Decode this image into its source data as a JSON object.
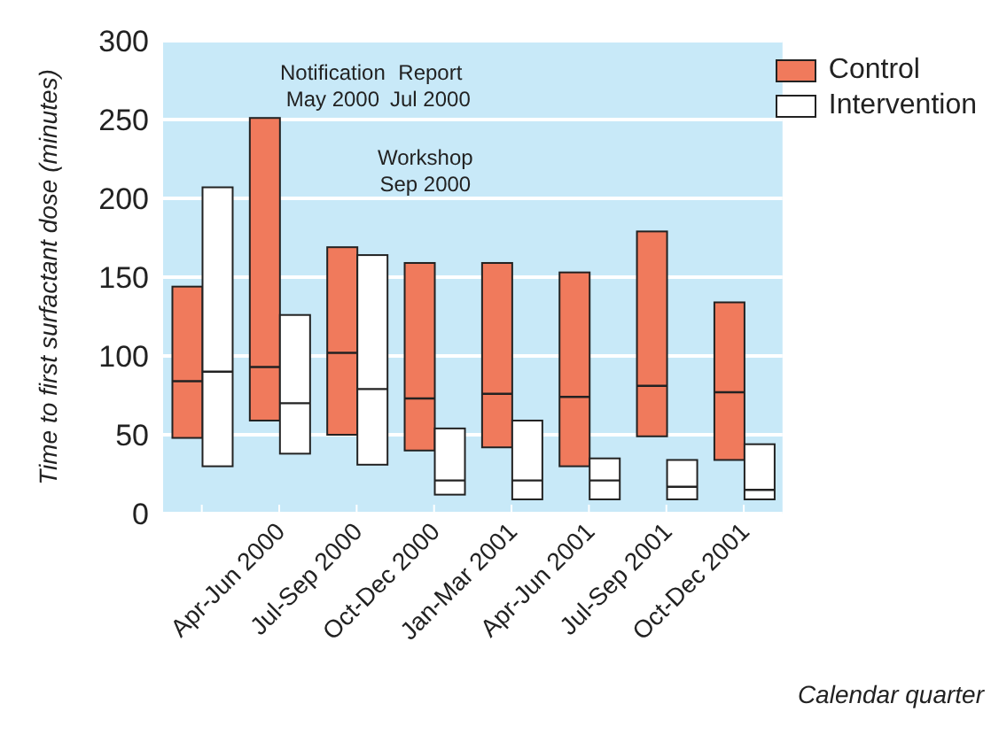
{
  "chart_data": {
    "type": "box",
    "ylabel": "Time to first surfactant dose (minutes)",
    "xlabel": "Calendar quarter",
    "categories": [
      null,
      "Apr-Jun 2000",
      "Jul-Sep 2000",
      "Oct-Dec 2000",
      "Jan-Mar 2001",
      "Apr-Jun 2001",
      "Jul-Sep 2001",
      "Oct-Dec 2001"
    ],
    "series": [
      {
        "name": "Control",
        "color": "#f07a5c",
        "boxes": [
          {
            "low": 48,
            "q1": 48,
            "median": 84,
            "q3": 144,
            "high": 144
          },
          {
            "low": 59,
            "q1": 59,
            "median": 93,
            "q3": 251,
            "high": 251
          },
          {
            "low": 50,
            "q1": 50,
            "median": 102,
            "q3": 169,
            "high": 169
          },
          {
            "low": 40,
            "q1": 40,
            "median": 73,
            "q3": 159,
            "high": 159
          },
          {
            "low": 42,
            "q1": 42,
            "median": 76,
            "q3": 159,
            "high": 159
          },
          {
            "low": 30,
            "q1": 30,
            "median": 74,
            "q3": 153,
            "high": 153
          },
          {
            "low": 49,
            "q1": 49,
            "median": 81,
            "q3": 179,
            "high": 179
          },
          {
            "low": 34,
            "q1": 34,
            "median": 77,
            "q3": 134,
            "high": 134
          }
        ]
      },
      {
        "name": "Intervention",
        "color": "#ffffff",
        "boxes": [
          {
            "low": 30,
            "q1": 30,
            "median": 90,
            "q3": 207,
            "high": 207
          },
          {
            "low": 38,
            "q1": 38,
            "median": 70,
            "q3": 126,
            "high": 126
          },
          {
            "low": 31,
            "q1": 31,
            "median": 79,
            "q3": 164,
            "high": 164
          },
          {
            "low": 12,
            "q1": 12,
            "median": 21,
            "q3": 54,
            "high": 54
          },
          {
            "low": 9,
            "q1": 9,
            "median": 21,
            "q3": 59,
            "high": 59
          },
          {
            "low": 9,
            "q1": 9,
            "median": 21,
            "q3": 35,
            "high": 35
          },
          {
            "low": 9,
            "q1": 9,
            "median": 17,
            "q3": 34,
            "high": 34
          },
          {
            "low": 9,
            "q1": 9,
            "median": 15,
            "q3": 44,
            "high": 44
          }
        ]
      }
    ],
    "ylim": [
      0,
      300
    ],
    "yticks": [
      0,
      50,
      100,
      150,
      200,
      250,
      300
    ],
    "grid": "y",
    "legend": "top right",
    "annotations": [
      "Notification\nMay 2000",
      "Report\nJul 2000",
      "Workshop\nSep 2000"
    ]
  }
}
